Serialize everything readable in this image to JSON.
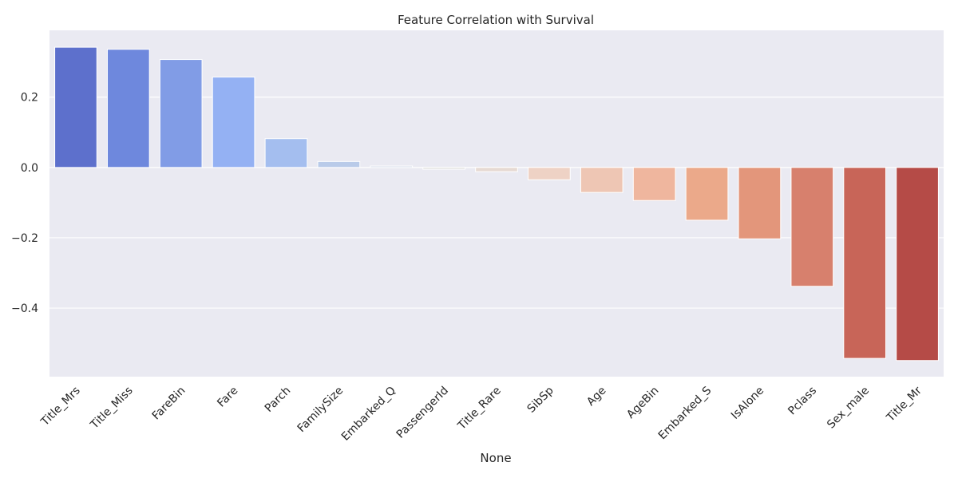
{
  "chart_data": {
    "type": "bar",
    "title": "Feature Correlation with Survival",
    "xlabel": "None",
    "ylabel": "",
    "ylim": [
      -0.595,
      0.39
    ],
    "yticks": [
      0.2,
      0.0,
      -0.2,
      -0.4
    ],
    "ytick_labels": [
      "0.2",
      "0.0",
      "−0.2",
      "−0.4"
    ],
    "grid": true,
    "background_color": "#eaeaf2",
    "categories": [
      "Title_Mrs",
      "Title_Miss",
      "FareBin",
      "Fare",
      "Parch",
      "FamilySize",
      "Embarked_Q",
      "PassengerId",
      "Title_Rare",
      "SibSp",
      "Age",
      "AgeBin",
      "Embarked_S",
      "IsAlone",
      "Pclass",
      "Sex_male",
      "Title_Mr"
    ],
    "values": [
      0.342,
      0.336,
      0.307,
      0.257,
      0.082,
      0.017,
      0.004,
      -0.005,
      -0.012,
      -0.035,
      -0.071,
      -0.094,
      -0.15,
      -0.203,
      -0.338,
      -0.543,
      -0.549
    ],
    "colors": [
      "#5d70cc",
      "#6e88dd",
      "#819ce6",
      "#94b1f3",
      "#a4beef",
      "#b9cbe9",
      "#ccd4e6",
      "#dcdcdb",
      "#e6dad3",
      "#eed2c5",
      "#eec6b4",
      "#efb69e",
      "#eba98a",
      "#e3967b",
      "#d7806d",
      "#c86558",
      "#b54b47"
    ]
  }
}
